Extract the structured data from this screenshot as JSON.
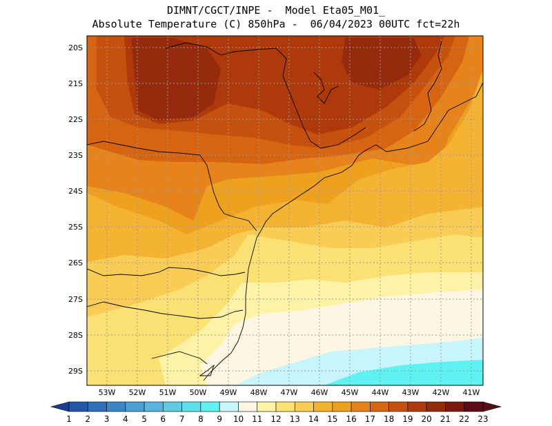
{
  "header": {
    "line1": "DIMNT/CGCT/INPE -  Model Eta05_M01_",
    "line2": "Absolute Temperature (C) 850hPa -  06/04/2023 00UTC fct=22h"
  },
  "axes": {
    "lat_labels": [
      "20S",
      "21S",
      "22S",
      "23S",
      "24S",
      "25S",
      "26S",
      "27S",
      "28S",
      "29S"
    ],
    "lon_labels": [
      "53W",
      "52W",
      "51W",
      "50W",
      "49W",
      "48W",
      "47W",
      "46W",
      "45W",
      "44W",
      "43W",
      "42W",
      "41W"
    ]
  },
  "colorbar": {
    "labels": [
      "1",
      "2",
      "3",
      "4",
      "5",
      "6",
      "7",
      "8",
      "9",
      "10",
      "11",
      "12",
      "13",
      "14",
      "15",
      "16",
      "17",
      "18",
      "19",
      "20",
      "21",
      "22",
      "23"
    ],
    "colors": [
      "#1b3f8f",
      "#2256a8",
      "#2f6fba",
      "#3b86c7",
      "#4b9fd3",
      "#58b5dc",
      "#5fcbe3",
      "#5fdfe9",
      "#5ef2f2",
      "#c8f4fb",
      "#fdf6e2",
      "#fdf2a6",
      "#fbe173",
      "#f9cd55",
      "#f4b333",
      "#eea11f",
      "#e6831a",
      "#d66411",
      "#c6500d",
      "#ae3a0c",
      "#952a0c",
      "#7a1a10",
      "#5c0b18"
    ]
  },
  "map_colors": {
    "t10": "#c8f4fb",
    "t9": "#5ef2f2",
    "t11": "#fdf6e2",
    "t12": "#fdf2a6",
    "t13": "#fbe173",
    "t14": "#f9cd55",
    "t15": "#f4b333",
    "t16": "#eea11f",
    "t17": "#e6831a",
    "t18": "#d66411",
    "t19": "#c6500d",
    "t20": "#ae3a0c",
    "t21": "#952a0c"
  }
}
